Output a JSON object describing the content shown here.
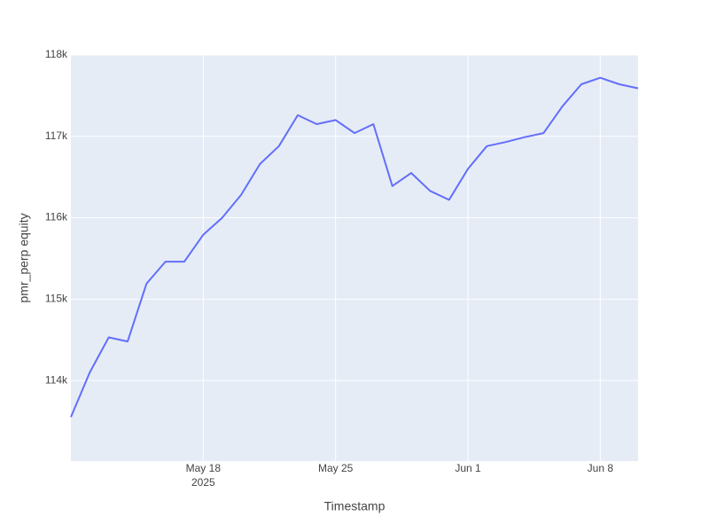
{
  "chart_data": {
    "type": "line",
    "x_title": "Timestamp",
    "y_title": "pmr_perp equity",
    "x": [
      "2025-05-11",
      "2025-05-12",
      "2025-05-13",
      "2025-05-14",
      "2025-05-15",
      "2025-05-16",
      "2025-05-17",
      "2025-05-18",
      "2025-05-19",
      "2025-05-20",
      "2025-05-21",
      "2025-05-22",
      "2025-05-23",
      "2025-05-24",
      "2025-05-25",
      "2025-05-26",
      "2025-05-27",
      "2025-05-28",
      "2025-05-29",
      "2025-05-30",
      "2025-05-31",
      "2025-06-01",
      "2025-06-02",
      "2025-06-03",
      "2025-06-04",
      "2025-06-05",
      "2025-06-06",
      "2025-06-07",
      "2025-06-08",
      "2025-06-09",
      "2025-06-10"
    ],
    "series": [
      {
        "name": "pmr_perp equity",
        "color": "#636efa",
        "values": [
          113550,
          114100,
          114530,
          114480,
          115190,
          115460,
          115460,
          115790,
          116000,
          116280,
          116660,
          116880,
          117260,
          117150,
          117200,
          117040,
          117150,
          116390,
          116550,
          116330,
          116220,
          116600,
          116880,
          116930,
          116990,
          117040,
          117370,
          117640,
          117720,
          117640,
          117590
        ]
      }
    ],
    "xlim": [
      "2025-05-11",
      "2025-06-10"
    ],
    "xticks": [
      {
        "value": "2025-05-18",
        "label": "May 18"
      },
      {
        "value": "2025-05-25",
        "label": "May 25"
      },
      {
        "value": "2025-06-01",
        "label": "Jun 1"
      },
      {
        "value": "2025-06-08",
        "label": "Jun 8"
      }
    ],
    "x_year_label": "2025",
    "ylim": [
      113010,
      118000
    ],
    "yticks": [
      {
        "value": 114000,
        "label": "114k"
      },
      {
        "value": 115000,
        "label": "115k"
      },
      {
        "value": 116000,
        "label": "116k"
      },
      {
        "value": 117000,
        "label": "117k"
      },
      {
        "value": 118000,
        "label": "118k"
      }
    ],
    "grid": true
  }
}
